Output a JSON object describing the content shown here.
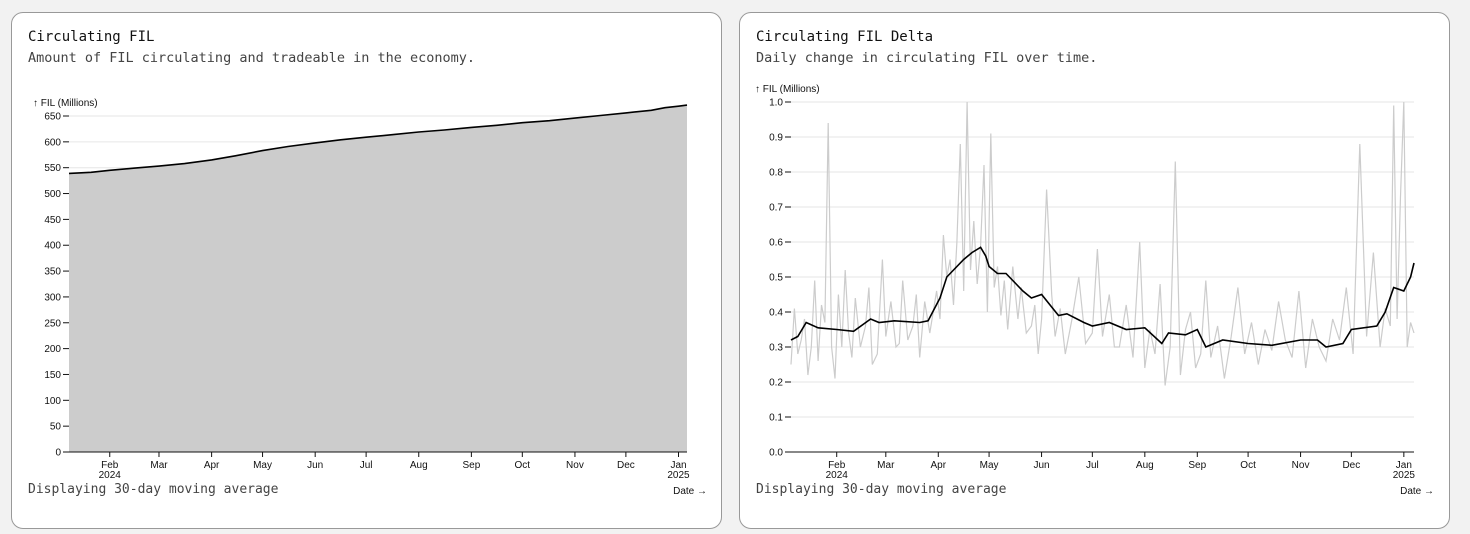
{
  "cards": [
    {
      "title": "Circulating FIL",
      "subtitle": "Amount of FIL circulating and tradeable in the economy.",
      "footer": "Displaying 30-day moving average"
    },
    {
      "title": "Circulating FIL Delta",
      "subtitle": "Daily change in circulating FIL over time.",
      "footer": "Displaying 30-day moving average"
    }
  ],
  "chart_data": [
    {
      "type": "area",
      "ylabel": "↑ FIL (Millions)",
      "xlabel": "Date →",
      "ylim": [
        0,
        650
      ],
      "yticks": [
        0,
        50,
        100,
        150,
        200,
        250,
        300,
        350,
        400,
        450,
        500,
        550,
        600,
        650
      ],
      "xlim_days_since_2024_01_01": [
        7,
        371
      ],
      "xticks": [
        {
          "label": "Feb",
          "sub": "2024",
          "day": 31
        },
        {
          "label": "Mar",
          "day": 60
        },
        {
          "label": "Apr",
          "day": 91
        },
        {
          "label": "May",
          "day": 121
        },
        {
          "label": "Jun",
          "day": 152
        },
        {
          "label": "Jul",
          "day": 182
        },
        {
          "label": "Aug",
          "day": 213
        },
        {
          "label": "Sep",
          "day": 244
        },
        {
          "label": "Oct",
          "day": 274
        },
        {
          "label": "Nov",
          "day": 305
        },
        {
          "label": "Dec",
          "day": 335
        },
        {
          "label": "Jan",
          "sub": "2025",
          "day": 366
        }
      ],
      "series": [
        {
          "name": "Circulating FIL",
          "x": [
            7,
            20,
            31,
            45,
            60,
            75,
            91,
            105,
            121,
            136,
            152,
            167,
            182,
            198,
            213,
            228,
            244,
            259,
            274,
            290,
            305,
            320,
            335,
            350,
            358,
            366,
            371
          ],
          "y": [
            539,
            541,
            545,
            549,
            553,
            558,
            565,
            573,
            583,
            591,
            598,
            604,
            609,
            614,
            619,
            623,
            628,
            632,
            637,
            641,
            646,
            651,
            656,
            661,
            666,
            669,
            671
          ]
        }
      ]
    },
    {
      "type": "line",
      "ylabel": "↑ FIL (Millions)",
      "xlabel": "Date →",
      "ylim": [
        0,
        1.0
      ],
      "yticks": [
        0.0,
        0.1,
        0.2,
        0.3,
        0.4,
        0.5,
        0.6,
        0.7,
        0.8,
        0.9,
        1.0
      ],
      "xlim_days_since_2024_01_01": [
        4,
        372
      ],
      "xticks": [
        {
          "label": "Feb",
          "sub": "2024",
          "day": 31
        },
        {
          "label": "Mar",
          "day": 60
        },
        {
          "label": "Apr",
          "day": 91
        },
        {
          "label": "May",
          "day": 121
        },
        {
          "label": "Jun",
          "day": 152
        },
        {
          "label": "Jul",
          "day": 182
        },
        {
          "label": "Aug",
          "day": 213
        },
        {
          "label": "Sep",
          "day": 244
        },
        {
          "label": "Oct",
          "day": 274
        },
        {
          "label": "Nov",
          "day": 305
        },
        {
          "label": "Dec",
          "day": 335
        },
        {
          "label": "Jan",
          "sub": "2025",
          "day": 366
        }
      ],
      "series": [
        {
          "name": "Daily delta",
          "color": "#cccccc",
          "x": [
            4,
            6,
            8,
            10,
            12,
            14,
            16,
            18,
            20,
            22,
            24,
            26,
            28,
            30,
            32,
            34,
            36,
            38,
            40,
            42,
            45,
            48,
            50,
            52,
            55,
            58,
            60,
            63,
            66,
            68,
            70,
            73,
            76,
            78,
            80,
            83,
            86,
            88,
            90,
            92,
            94,
            96,
            98,
            100,
            102,
            104,
            106,
            108,
            110,
            112,
            114,
            116,
            118,
            120,
            122,
            124,
            126,
            128,
            130,
            132,
            135,
            138,
            140,
            143,
            146,
            148,
            150,
            152,
            155,
            158,
            160,
            163,
            166,
            170,
            174,
            178,
            182,
            185,
            188,
            192,
            195,
            198,
            202,
            206,
            210,
            213,
            216,
            219,
            222,
            225,
            228,
            231,
            234,
            237,
            240,
            243,
            246,
            249,
            252,
            256,
            260,
            264,
            268,
            272,
            276,
            280,
            284,
            288,
            292,
            296,
            300,
            304,
            308,
            312,
            316,
            320,
            324,
            328,
            332,
            336,
            340,
            344,
            348,
            352,
            355,
            358,
            360,
            362,
            364,
            366,
            368,
            370,
            372
          ],
          "y": [
            0.25,
            0.41,
            0.28,
            0.32,
            0.38,
            0.22,
            0.3,
            0.49,
            0.26,
            0.42,
            0.37,
            0.94,
            0.3,
            0.21,
            0.45,
            0.3,
            0.52,
            0.34,
            0.27,
            0.44,
            0.3,
            0.36,
            0.47,
            0.25,
            0.28,
            0.55,
            0.33,
            0.43,
            0.3,
            0.31,
            0.49,
            0.32,
            0.36,
            0.45,
            0.27,
            0.43,
            0.34,
            0.4,
            0.46,
            0.38,
            0.62,
            0.5,
            0.55,
            0.42,
            0.6,
            0.88,
            0.46,
            1.0,
            0.52,
            0.66,
            0.48,
            0.59,
            0.82,
            0.4,
            0.91,
            0.47,
            0.53,
            0.39,
            0.49,
            0.35,
            0.53,
            0.38,
            0.47,
            0.34,
            0.36,
            0.42,
            0.28,
            0.38,
            0.75,
            0.45,
            0.33,
            0.41,
            0.28,
            0.38,
            0.5,
            0.31,
            0.34,
            0.58,
            0.33,
            0.45,
            0.3,
            0.3,
            0.42,
            0.27,
            0.6,
            0.24,
            0.35,
            0.28,
            0.48,
            0.19,
            0.3,
            0.83,
            0.22,
            0.35,
            0.4,
            0.24,
            0.28,
            0.49,
            0.27,
            0.36,
            0.21,
            0.33,
            0.47,
            0.28,
            0.37,
            0.25,
            0.35,
            0.29,
            0.43,
            0.32,
            0.27,
            0.46,
            0.24,
            0.38,
            0.3,
            0.26,
            0.38,
            0.32,
            0.47,
            0.28,
            0.88,
            0.33,
            0.57,
            0.3,
            0.41,
            0.36,
            0.99,
            0.38,
            0.73,
            1.0,
            0.3,
            0.37,
            0.34
          ]
        },
        {
          "name": "30-day moving average",
          "color": "#000000",
          "x": [
            4,
            8,
            13,
            20,
            31,
            41,
            51,
            56,
            65,
            80,
            85,
            92,
            96,
            106,
            111,
            116,
            119,
            121,
            126,
            131,
            141,
            146,
            152,
            162,
            167,
            177,
            182,
            192,
            202,
            213,
            223,
            227,
            237,
            244,
            249,
            259,
            274,
            288,
            305,
            315,
            320,
            330,
            335,
            350,
            355,
            360,
            366,
            370,
            372
          ],
          "y": [
            0.32,
            0.33,
            0.37,
            0.355,
            0.35,
            0.345,
            0.38,
            0.37,
            0.375,
            0.37,
            0.375,
            0.44,
            0.5,
            0.55,
            0.57,
            0.585,
            0.56,
            0.53,
            0.51,
            0.51,
            0.46,
            0.44,
            0.45,
            0.39,
            0.395,
            0.37,
            0.36,
            0.37,
            0.35,
            0.355,
            0.31,
            0.34,
            0.335,
            0.35,
            0.3,
            0.32,
            0.31,
            0.305,
            0.32,
            0.32,
            0.3,
            0.31,
            0.35,
            0.36,
            0.4,
            0.47,
            0.46,
            0.5,
            0.54
          ]
        }
      ]
    }
  ]
}
